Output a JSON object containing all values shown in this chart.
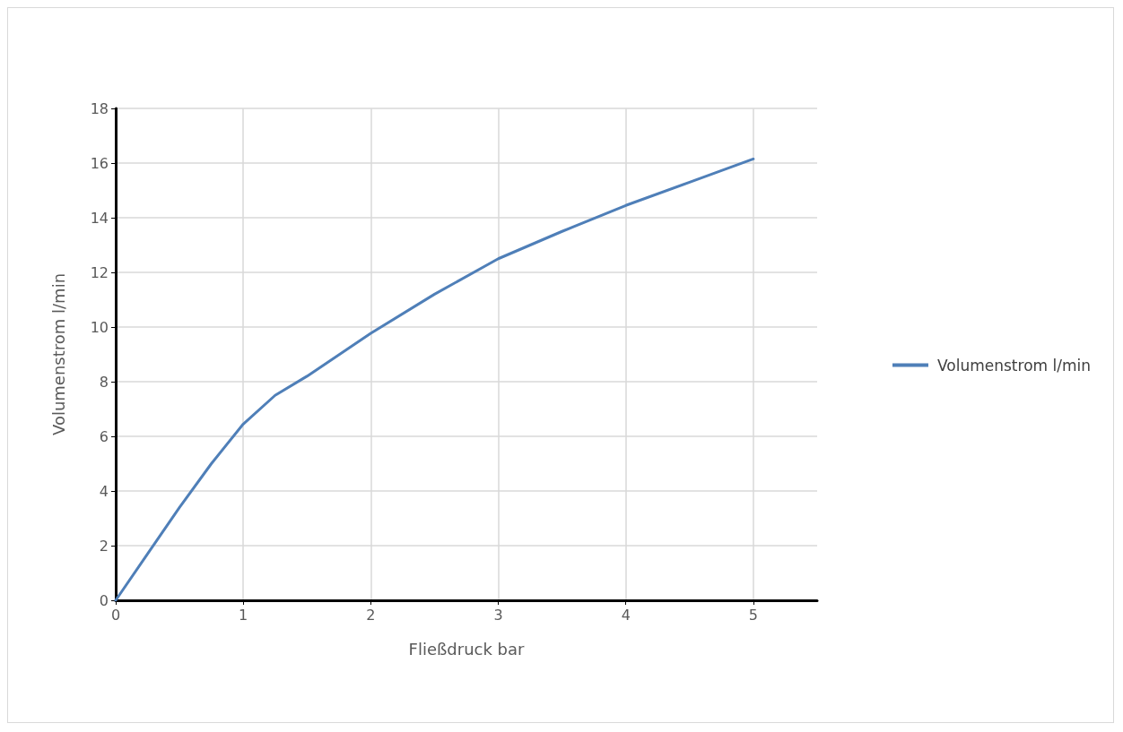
{
  "chart_data": {
    "type": "line",
    "xlabel": "Fließdruck bar",
    "ylabel": "Volumenstrom l/min",
    "xlim": [
      0,
      5.5
    ],
    "xticks": [
      0,
      1,
      2,
      3,
      4,
      5
    ],
    "ylim": [
      0,
      18
    ],
    "yticks": [
      0,
      2,
      4,
      6,
      8,
      10,
      12,
      14,
      16,
      18
    ],
    "grid": true,
    "legend": "right",
    "marker": "none",
    "line_style": "solid",
    "series": [
      {
        "name": "Volumenstrom l/min",
        "color": "#4f7fb8",
        "x": [
          0,
          0.25,
          0.5,
          0.75,
          1,
          1.25,
          1.5,
          2,
          2.5,
          3,
          3.5,
          4,
          4.5,
          5
        ],
        "values": [
          0,
          1.7,
          3.4,
          5.0,
          6.45,
          7.5,
          8.2,
          9.77,
          11.2,
          12.5,
          13.5,
          14.45,
          15.3,
          16.15
        ]
      }
    ]
  }
}
